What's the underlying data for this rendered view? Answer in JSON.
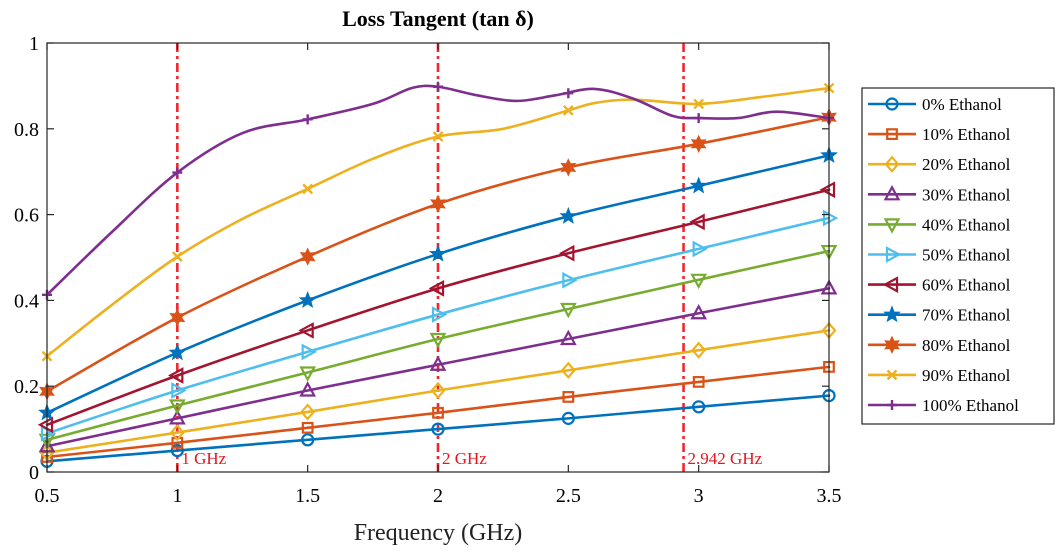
{
  "chart_data": {
    "type": "line",
    "title": "Loss Tangent (tan δ)",
    "xlabel": "Frequency (GHz)",
    "ylabel": "",
    "xlim": [
      0.5,
      3.5
    ],
    "ylim": [
      0,
      1
    ],
    "xticks": [
      "0.5",
      "1",
      "1.5",
      "2",
      "2.5",
      "3",
      "3.5"
    ],
    "yticks": [
      "0",
      "0.2",
      "0.4",
      "0.6",
      "0.8",
      "1"
    ],
    "grid": false,
    "legend_position": "right",
    "vlines": [
      {
        "x": 1.0,
        "label": "1 GHz"
      },
      {
        "x": 2.0,
        "label": "2 GHz"
      },
      {
        "x": 2.942,
        "label": "2.942 GHz"
      }
    ],
    "series": [
      {
        "name": "0% Ethanol",
        "color": "#0072bd",
        "marker": "circle",
        "x": [
          0.5,
          1.0,
          1.5,
          2.0,
          2.5,
          3.0,
          3.5
        ],
        "values": [
          0.025,
          0.05,
          0.075,
          0.1,
          0.125,
          0.152,
          0.178
        ]
      },
      {
        "name": "10% Ethanol",
        "color": "#d95319",
        "marker": "square",
        "x": [
          0.5,
          1.0,
          1.5,
          2.0,
          2.5,
          3.0,
          3.5
        ],
        "values": [
          0.035,
          0.068,
          0.103,
          0.138,
          0.175,
          0.21,
          0.245
        ]
      },
      {
        "name": "20% Ethanol",
        "color": "#edb120",
        "marker": "diamond",
        "x": [
          0.5,
          1.0,
          1.5,
          2.0,
          2.5,
          3.0,
          3.5
        ],
        "values": [
          0.045,
          0.092,
          0.14,
          0.19,
          0.237,
          0.284,
          0.33
        ]
      },
      {
        "name": "30% Ethanol",
        "color": "#7e2f8e",
        "marker": "triangle-up",
        "x": [
          0.5,
          1.0,
          1.5,
          2.0,
          2.5,
          3.0,
          3.5
        ],
        "values": [
          0.06,
          0.125,
          0.19,
          0.25,
          0.31,
          0.37,
          0.428
        ]
      },
      {
        "name": "40% Ethanol",
        "color": "#77ac30",
        "marker": "triangle-down",
        "x": [
          0.5,
          1.0,
          1.5,
          2.0,
          2.5,
          3.0,
          3.5
        ],
        "values": [
          0.075,
          0.155,
          0.232,
          0.31,
          0.38,
          0.448,
          0.515
        ]
      },
      {
        "name": "50% Ethanol",
        "color": "#4dbeee",
        "marker": "triangle-right",
        "x": [
          0.5,
          1.0,
          1.5,
          2.0,
          2.5,
          3.0,
          3.5
        ],
        "values": [
          0.09,
          0.19,
          0.28,
          0.367,
          0.447,
          0.52,
          0.592
        ]
      },
      {
        "name": "60% Ethanol",
        "color": "#a2142f",
        "marker": "triangle-left",
        "x": [
          0.5,
          1.0,
          1.5,
          2.0,
          2.5,
          3.0,
          3.5
        ],
        "values": [
          0.11,
          0.225,
          0.33,
          0.428,
          0.51,
          0.583,
          0.658
        ]
      },
      {
        "name": "70% Ethanol",
        "color": "#0072bd",
        "marker": "star",
        "x": [
          0.5,
          1.0,
          1.5,
          2.0,
          2.5,
          3.0,
          3.5
        ],
        "values": [
          0.138,
          0.278,
          0.4,
          0.508,
          0.596,
          0.667,
          0.738
        ]
      },
      {
        "name": "80% Ethanol",
        "color": "#d95319",
        "marker": "hexagram",
        "x": [
          0.5,
          1.0,
          1.5,
          2.0,
          2.5,
          3.0,
          3.5
        ],
        "values": [
          0.188,
          0.36,
          0.502,
          0.625,
          0.71,
          0.765,
          0.827
        ]
      },
      {
        "name": "90% Ethanol",
        "color": "#edb120",
        "marker": "x",
        "x": [
          0.5,
          0.75,
          1.0,
          1.25,
          1.5,
          1.75,
          2.0,
          2.25,
          2.5,
          2.6,
          2.75,
          3.0,
          3.25,
          3.5
        ],
        "values": [
          0.27,
          0.39,
          0.502,
          0.59,
          0.66,
          0.73,
          0.782,
          0.8,
          0.843,
          0.86,
          0.868,
          0.858,
          0.875,
          0.895
        ],
        "marker_x": [
          0.5,
          1.0,
          1.5,
          2.0,
          2.5,
          3.0,
          3.5
        ]
      },
      {
        "name": "100% Ethanol",
        "color": "#7e2f8e",
        "marker": "plus",
        "x": [
          0.5,
          0.75,
          1.0,
          1.25,
          1.5,
          1.75,
          1.9,
          2.0,
          2.15,
          2.3,
          2.45,
          2.6,
          2.75,
          2.9,
          3.0,
          3.15,
          3.3,
          3.5
        ],
        "values": [
          0.413,
          0.56,
          0.698,
          0.79,
          0.822,
          0.858,
          0.895,
          0.898,
          0.878,
          0.865,
          0.878,
          0.893,
          0.87,
          0.83,
          0.825,
          0.825,
          0.84,
          0.825
        ],
        "marker_x": [
          0.5,
          1.0,
          1.5,
          2.0,
          2.5,
          3.0,
          3.5
        ]
      }
    ]
  }
}
